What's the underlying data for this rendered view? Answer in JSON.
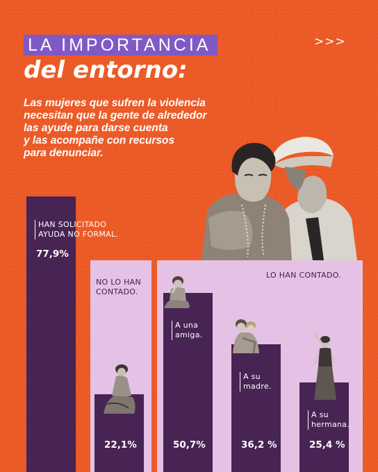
{
  "header": {
    "title": "LA IMPORTANCIA",
    "subtitle": "del entorno:",
    "nav_arrows": ">>>"
  },
  "intro_lines": [
    "Las mujeres que sufren la violencia",
    "necesitan que la gente de alrededor",
    "las ayude para darse cuenta",
    "y las acompañe con recursos",
    "para denunciar."
  ],
  "panels": {
    "no_contado": [
      "NO LO HAN",
      "CONTADO."
    ],
    "contado": "LO HAN CONTADO."
  },
  "chart_data": {
    "type": "bar",
    "title": "LA IMPORTANCIA del entorno:",
    "categories": [
      "HAN SOLICITADO AYUDA NO FORMAL.",
      "NO LO HAN CONTADO.",
      "A una amiga.",
      "A su madre.",
      "A su hermana."
    ],
    "values": [
      77.9,
      22.1,
      50.7,
      36.2,
      25.4
    ],
    "value_labels": [
      "77,9%",
      "22,1%",
      "50,7%",
      "36,2 %",
      "25,4 %"
    ],
    "unit": "%",
    "ylim": [
      0,
      100
    ],
    "groups": [
      {
        "name": "NO LO HAN CONTADO.",
        "categories": [
          "NO LO HAN CONTADO."
        ]
      },
      {
        "name": "LO HAN CONTADO.",
        "categories": [
          "A una amiga.",
          "A su madre.",
          "A su hermana."
        ]
      }
    ],
    "bar_label_lines": [
      [
        "HAN SOLICITADO",
        "AYUDA NO FORMAL."
      ],
      [],
      [
        "A una",
        "amiga."
      ],
      [
        "A su",
        "madre."
      ],
      [
        "A su",
        "hermana."
      ]
    ],
    "colors": {
      "bar": "#472454",
      "panel": "#e5c2e5",
      "background": "#ec5a26",
      "title_box": "#8159c5"
    },
    "grid": false,
    "legend": "none"
  }
}
